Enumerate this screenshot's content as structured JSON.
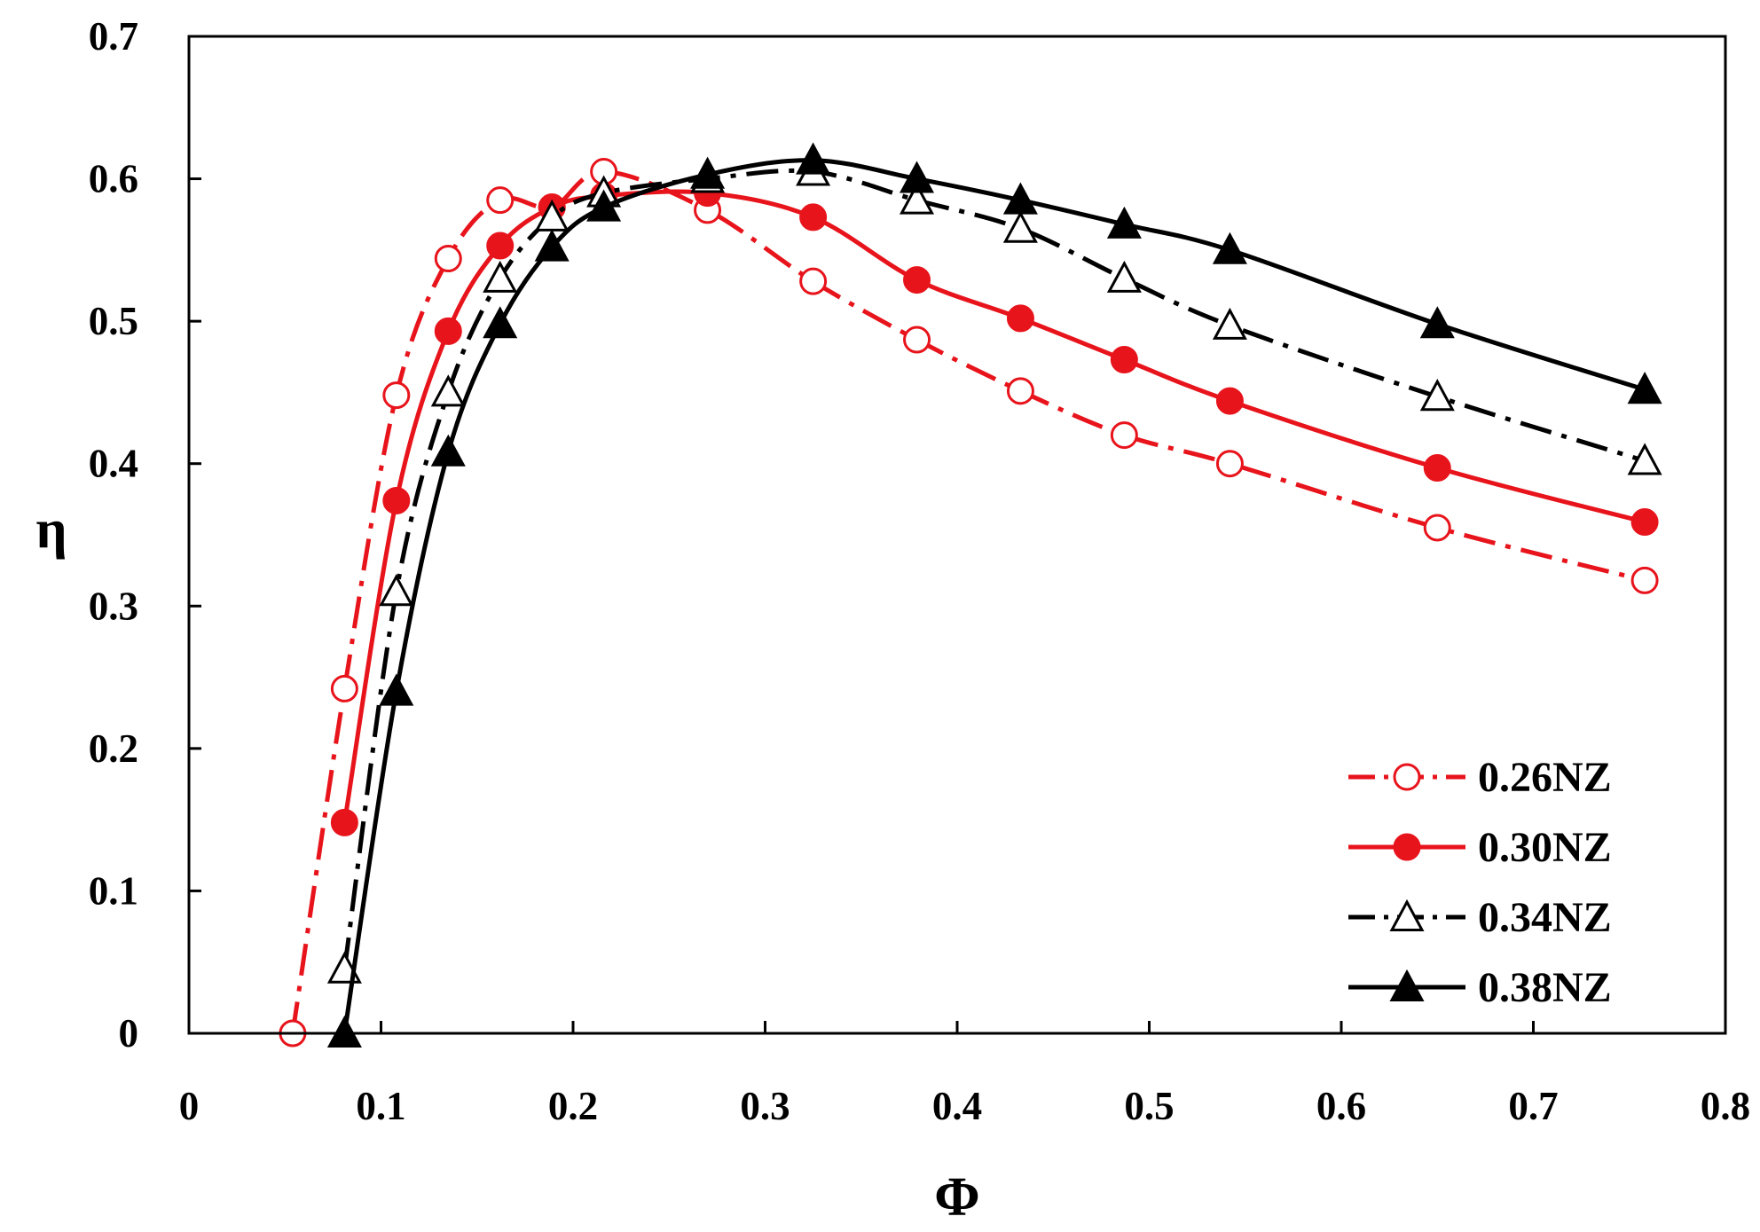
{
  "chart_data": {
    "type": "line",
    "title": "",
    "xlabel": "Φ",
    "ylabel": "η",
    "xlim": [
      0,
      0.8
    ],
    "ylim": [
      0,
      0.7
    ],
    "xticks": [
      0,
      0.1,
      0.2,
      0.3,
      0.4,
      0.5,
      0.6,
      0.7,
      0.8
    ],
    "xtick_labels": [
      "0",
      "0.1",
      "0.2",
      "0.3",
      "0.4",
      "0.5",
      "0.6",
      "0.7",
      "0.8"
    ],
    "yticks": [
      0,
      0.1,
      0.2,
      0.3,
      0.4,
      0.5,
      0.6,
      0.7
    ],
    "ytick_labels": [
      "0",
      "0.1",
      "0.2",
      "0.3",
      "0.4",
      "0.5",
      "0.6",
      "0.7"
    ],
    "grid": false,
    "legend_position": "bottom-right",
    "series": [
      {
        "name": "0.26NZ",
        "color": "#e8141c",
        "marker": "circle-open",
        "line_style": "dash-dot",
        "x": [
          0.054,
          0.081,
          0.108,
          0.135,
          0.162,
          0.189,
          0.216,
          0.27,
          0.325,
          0.379,
          0.433,
          0.487,
          0.542,
          0.65,
          0.758
        ],
        "y": [
          0.0,
          0.242,
          0.448,
          0.544,
          0.585,
          0.58,
          0.605,
          0.578,
          0.528,
          0.487,
          0.451,
          0.42,
          0.4,
          0.355,
          0.318
        ]
      },
      {
        "name": "0.30NZ",
        "color": "#e8141c",
        "marker": "circle-filled",
        "line_style": "solid",
        "x": [
          0.081,
          0.108,
          0.135,
          0.162,
          0.189,
          0.216,
          0.27,
          0.325,
          0.379,
          0.433,
          0.487,
          0.542,
          0.65,
          0.758
        ],
        "y": [
          0.148,
          0.374,
          0.493,
          0.553,
          0.58,
          0.588,
          0.59,
          0.573,
          0.529,
          0.502,
          0.473,
          0.444,
          0.397,
          0.359
        ]
      },
      {
        "name": "0.34NZ",
        "color": "#000000",
        "marker": "triangle-open",
        "line_style": "dash-dot",
        "x": [
          0.081,
          0.108,
          0.135,
          0.162,
          0.189,
          0.216,
          0.27,
          0.325,
          0.379,
          0.433,
          0.487,
          0.542,
          0.65,
          0.758
        ],
        "y": [
          0.045,
          0.31,
          0.45,
          0.53,
          0.573,
          0.59,
          0.6,
          0.605,
          0.585,
          0.565,
          0.53,
          0.497,
          0.447,
          0.402
        ]
      },
      {
        "name": "0.38NZ",
        "color": "#000000",
        "marker": "triangle-filled",
        "line_style": "solid",
        "x": [
          0.081,
          0.108,
          0.135,
          0.162,
          0.189,
          0.216,
          0.27,
          0.325,
          0.379,
          0.433,
          0.487,
          0.542,
          0.65,
          0.758
        ],
        "y": [
          0.0,
          0.24,
          0.408,
          0.498,
          0.552,
          0.58,
          0.603,
          0.613,
          0.6,
          0.585,
          0.568,
          0.55,
          0.498,
          0.452
        ]
      }
    ]
  }
}
